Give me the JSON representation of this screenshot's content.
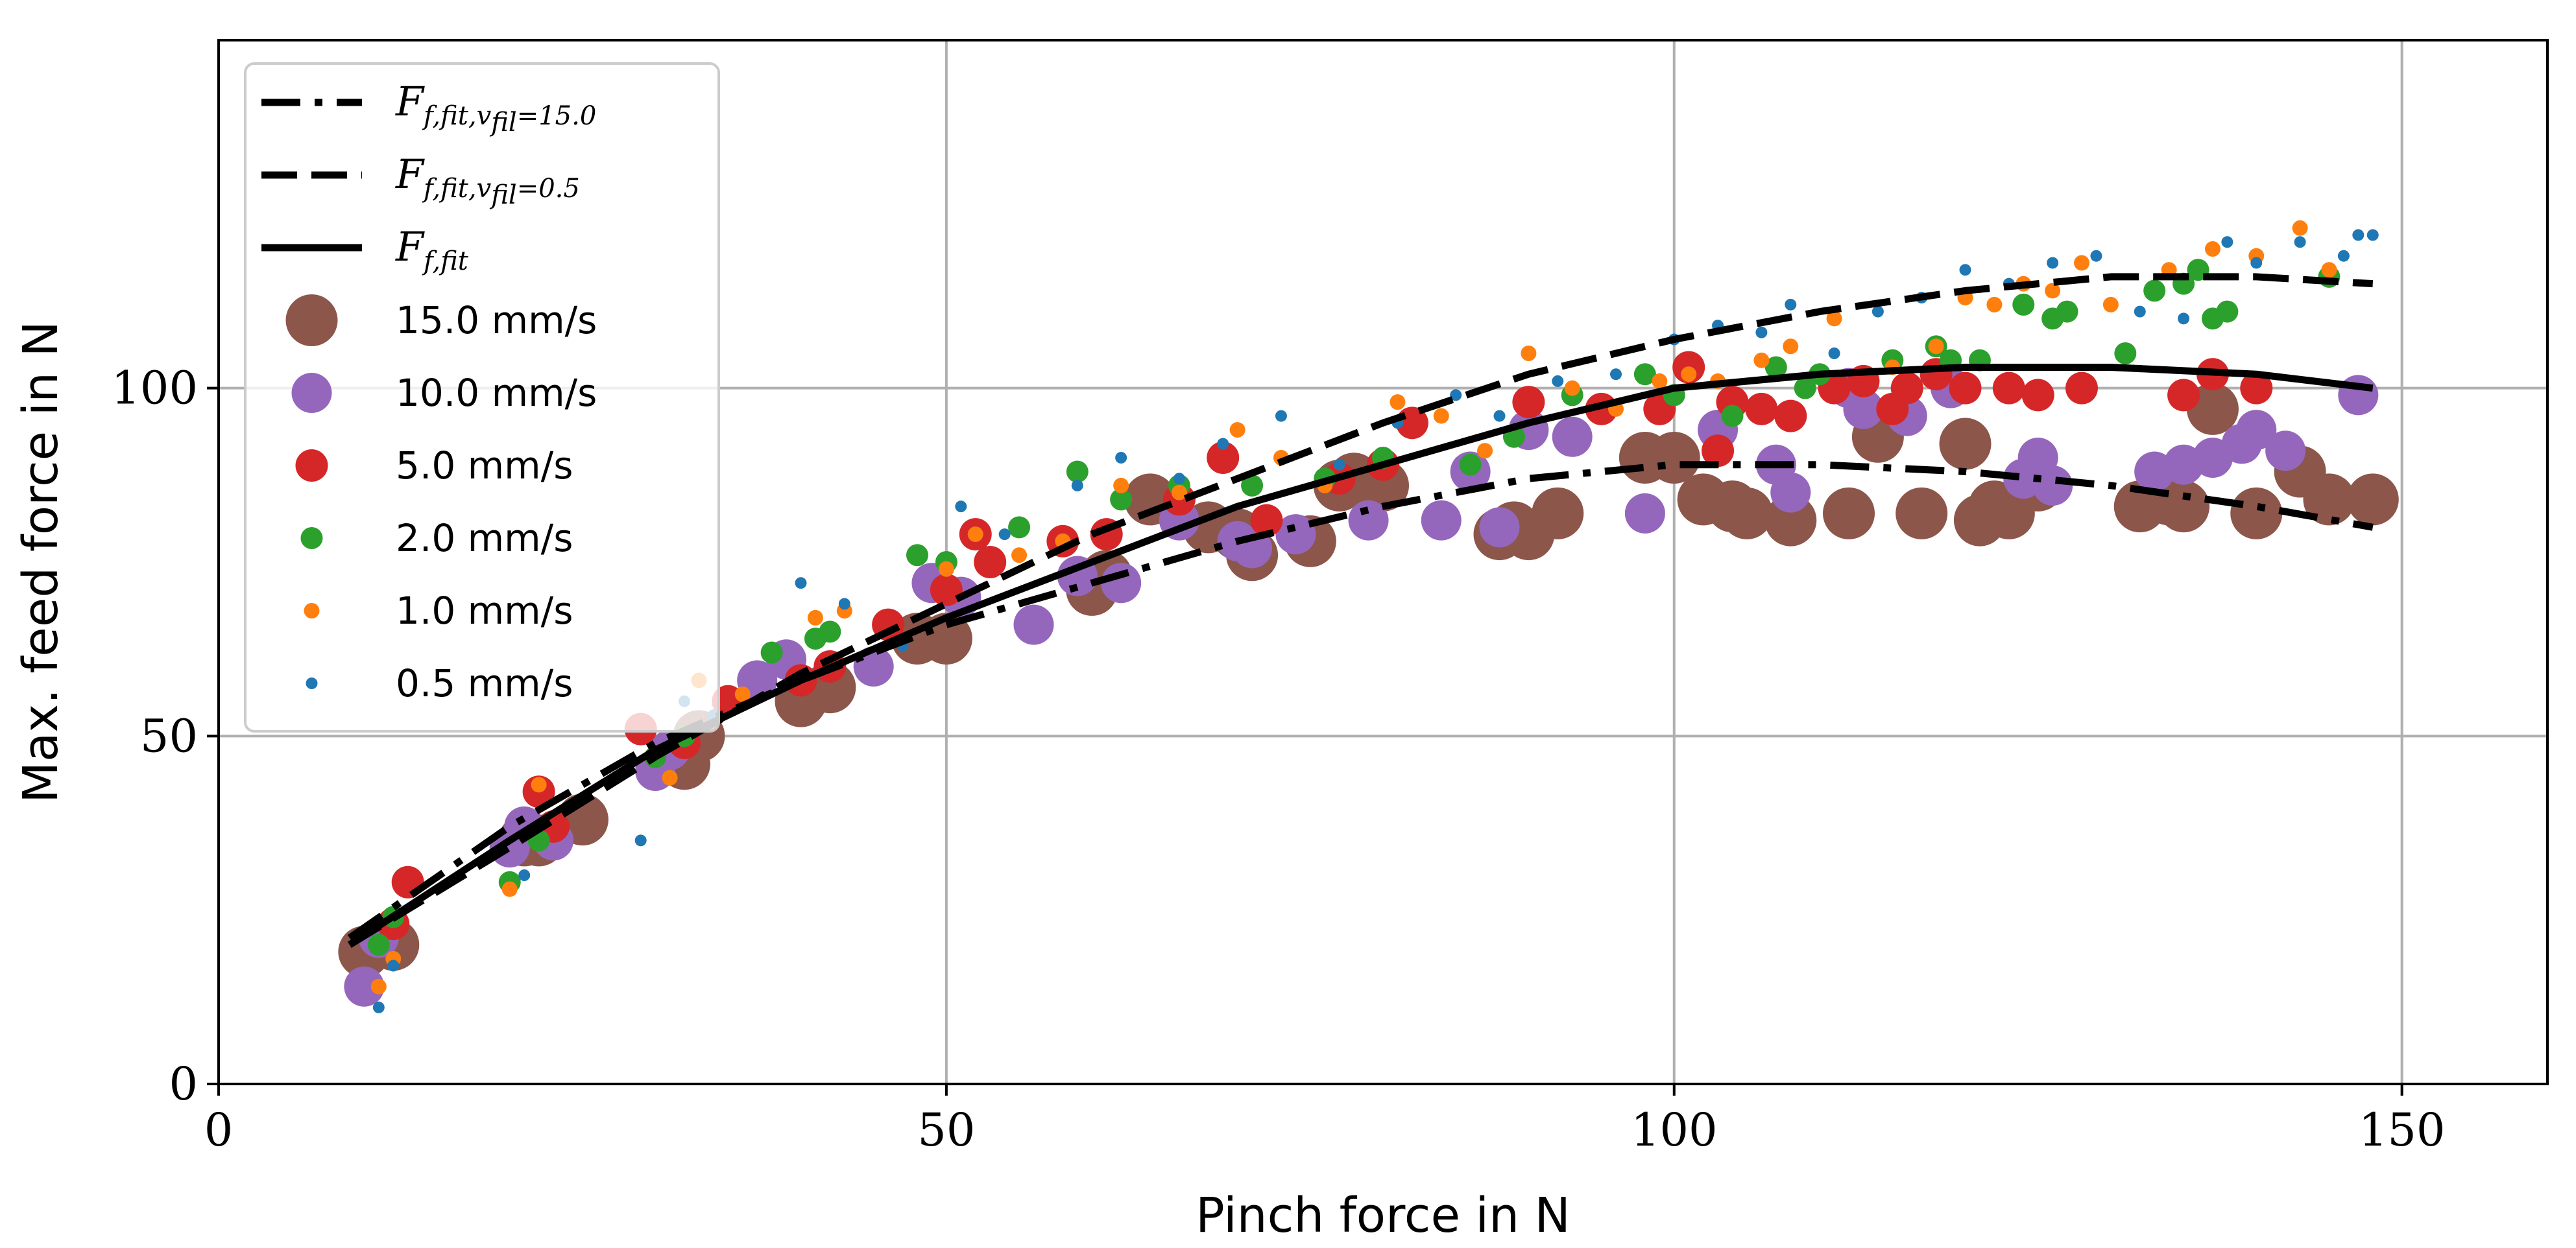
{
  "chart_data": {
    "type": "scatter",
    "title": "",
    "xlabel": "Pinch force in N",
    "ylabel": "Max. feed force in N",
    "xlim": [
      0,
      160
    ],
    "ylim": [
      0,
      150
    ],
    "xticks": [
      "0",
      "50",
      "100",
      "150"
    ],
    "xtick_values": [
      0,
      50,
      100,
      150
    ],
    "yticks": [
      "0",
      "50",
      "100"
    ],
    "ytick_values": [
      0,
      50,
      100
    ],
    "grid": true,
    "legend_position": "top-left",
    "fit_lines": [
      {
        "legend_main": "F",
        "legend_sub": "f,fit,v",
        "legend_subsub": "fil",
        "legend_tail": "=15.0",
        "style": "dashdot",
        "color": "#000000",
        "x": [
          9,
          20,
          30,
          40,
          50,
          60,
          70,
          80,
          90,
          100,
          110,
          120,
          130,
          140,
          148
        ],
        "y": [
          21,
          37,
          49,
          58,
          66,
          72,
          78,
          83,
          87,
          89,
          89,
          88,
          86,
          83,
          80
        ]
      },
      {
        "legend_main": "F",
        "legend_sub": "f,fit,v",
        "legend_subsub": "fil",
        "legend_tail": "=0.5",
        "style": "dashed",
        "color": "#000000",
        "x": [
          9,
          20,
          30,
          40,
          50,
          60,
          70,
          80,
          90,
          100,
          110,
          120,
          130,
          140,
          148
        ],
        "y": [
          20,
          34,
          47,
          59,
          69,
          79,
          87,
          95,
          102,
          107,
          111,
          114,
          116,
          116,
          115
        ]
      },
      {
        "legend_main": "F",
        "legend_sub": "f,fit",
        "legend_subsub": "",
        "legend_tail": "",
        "style": "solid",
        "color": "#000000",
        "x": [
          9,
          20,
          30,
          40,
          50,
          60,
          70,
          80,
          90,
          100,
          110,
          120,
          130,
          140,
          148
        ],
        "y": [
          20,
          35,
          48,
          58,
          67,
          75,
          83,
          89,
          95,
          100,
          102,
          103,
          103,
          102,
          100
        ]
      }
    ],
    "series": [
      {
        "name": "15.0 mm/s",
        "color": "#8c564b",
        "marker_radius": 40,
        "points": [
          [
            10,
            19
          ],
          [
            12,
            20
          ],
          [
            21,
            35
          ],
          [
            22,
            35
          ],
          [
            25,
            38
          ],
          [
            32,
            46
          ],
          [
            33,
            50
          ],
          [
            40,
            55
          ],
          [
            42,
            57
          ],
          [
            48,
            64
          ],
          [
            50,
            64
          ],
          [
            60,
            71
          ],
          [
            61,
            73
          ],
          [
            64,
            84
          ],
          [
            68,
            80
          ],
          [
            70,
            79
          ],
          [
            71,
            76
          ],
          [
            75,
            78
          ],
          [
            77,
            86
          ],
          [
            78,
            87
          ],
          [
            80,
            86
          ],
          [
            88,
            79
          ],
          [
            89,
            80
          ],
          [
            90,
            79
          ],
          [
            92,
            82
          ],
          [
            98,
            90
          ],
          [
            100,
            90
          ],
          [
            102,
            84
          ],
          [
            104,
            83
          ],
          [
            105,
            82
          ],
          [
            108,
            81
          ],
          [
            112,
            82
          ],
          [
            114,
            93
          ],
          [
            117,
            82
          ],
          [
            120,
            92
          ],
          [
            121,
            81
          ],
          [
            122,
            83
          ],
          [
            123,
            82
          ],
          [
            125,
            86
          ],
          [
            132,
            83
          ],
          [
            134,
            84
          ],
          [
            135,
            83
          ],
          [
            137,
            97
          ],
          [
            140,
            82
          ],
          [
            143,
            88
          ],
          [
            145,
            84
          ],
          [
            148,
            84
          ]
        ]
      },
      {
        "name": "10.0 mm/s",
        "color": "#9467bd",
        "marker_radius": 31,
        "points": [
          [
            10,
            14
          ],
          [
            11,
            21
          ],
          [
            20,
            34
          ],
          [
            21,
            37
          ],
          [
            23,
            35
          ],
          [
            30,
            45
          ],
          [
            31,
            48
          ],
          [
            37,
            58
          ],
          [
            39,
            61
          ],
          [
            45,
            60
          ],
          [
            49,
            72
          ],
          [
            51,
            70
          ],
          [
            56,
            66
          ],
          [
            59,
            73
          ],
          [
            62,
            72
          ],
          [
            66,
            81
          ],
          [
            70,
            78
          ],
          [
            71,
            77
          ],
          [
            74,
            79
          ],
          [
            79,
            81
          ],
          [
            84,
            81
          ],
          [
            86,
            88
          ],
          [
            88,
            80
          ],
          [
            90,
            94
          ],
          [
            93,
            93
          ],
          [
            98,
            82
          ],
          [
            103,
            94
          ],
          [
            107,
            89
          ],
          [
            108,
            85
          ],
          [
            112,
            100
          ],
          [
            113,
            97
          ],
          [
            116,
            96
          ],
          [
            119,
            100
          ],
          [
            124,
            87
          ],
          [
            125,
            90
          ],
          [
            126,
            86
          ],
          [
            133,
            88
          ],
          [
            135,
            89
          ],
          [
            137,
            90
          ],
          [
            139,
            92
          ],
          [
            140,
            94
          ],
          [
            142,
            91
          ],
          [
            147,
            99
          ]
        ]
      },
      {
        "name": "5.0 mm/s",
        "color": "#d62728",
        "marker_radius": 25,
        "points": [
          [
            13,
            29
          ],
          [
            12,
            23
          ],
          [
            22,
            42
          ],
          [
            23,
            37
          ],
          [
            29,
            51
          ],
          [
            32,
            49
          ],
          [
            35,
            55
          ],
          [
            40,
            58
          ],
          [
            42,
            60
          ],
          [
            46,
            66
          ],
          [
            50,
            71
          ],
          [
            52,
            79
          ],
          [
            53,
            75
          ],
          [
            58,
            78
          ],
          [
            61,
            79
          ],
          [
            66,
            84
          ],
          [
            69,
            90
          ],
          [
            72,
            81
          ],
          [
            77,
            87
          ],
          [
            80,
            89
          ],
          [
            82,
            95
          ],
          [
            90,
            98
          ],
          [
            95,
            97
          ],
          [
            99,
            97
          ],
          [
            101,
            103
          ],
          [
            103,
            91
          ],
          [
            104,
            98
          ],
          [
            106,
            97
          ],
          [
            108,
            96
          ],
          [
            111,
            100
          ],
          [
            113,
            101
          ],
          [
            115,
            97
          ],
          [
            116,
            100
          ],
          [
            118,
            102
          ],
          [
            120,
            100
          ],
          [
            123,
            100
          ],
          [
            125,
            99
          ],
          [
            128,
            100
          ],
          [
            135,
            99
          ],
          [
            137,
            102
          ],
          [
            140,
            100
          ]
        ]
      },
      {
        "name": "2.0 mm/s",
        "color": "#2ca02c",
        "marker_radius": 17,
        "points": [
          [
            11,
            20
          ],
          [
            12,
            24
          ],
          [
            20,
            29
          ],
          [
            22,
            35
          ],
          [
            30,
            47
          ],
          [
            32,
            50
          ],
          [
            38,
            62
          ],
          [
            41,
            64
          ],
          [
            42,
            65
          ],
          [
            48,
            76
          ],
          [
            50,
            75
          ],
          [
            55,
            80
          ],
          [
            59,
            88
          ],
          [
            62,
            84
          ],
          [
            66,
            86
          ],
          [
            71,
            86
          ],
          [
            76,
            87
          ],
          [
            80,
            90
          ],
          [
            86,
            89
          ],
          [
            89,
            93
          ],
          [
            93,
            99
          ],
          [
            98,
            102
          ],
          [
            100,
            99
          ],
          [
            104,
            96
          ],
          [
            107,
            103
          ],
          [
            109,
            100
          ],
          [
            110,
            102
          ],
          [
            115,
            104
          ],
          [
            118,
            106
          ],
          [
            119,
            104
          ],
          [
            121,
            104
          ],
          [
            124,
            112
          ],
          [
            126,
            110
          ],
          [
            127,
            111
          ],
          [
            131,
            105
          ],
          [
            133,
            114
          ],
          [
            135,
            115
          ],
          [
            136,
            117
          ],
          [
            137,
            110
          ],
          [
            138,
            111
          ],
          [
            145,
            116
          ]
        ]
      },
      {
        "name": "1.0 mm/s",
        "color": "#ff7f0e",
        "marker_radius": 12,
        "points": [
          [
            11,
            14
          ],
          [
            12,
            18
          ],
          [
            20,
            28
          ],
          [
            22,
            43
          ],
          [
            31,
            44
          ],
          [
            33,
            58
          ],
          [
            36,
            56
          ],
          [
            41,
            67
          ],
          [
            43,
            68
          ],
          [
            50,
            74
          ],
          [
            52,
            79
          ],
          [
            55,
            76
          ],
          [
            58,
            78
          ],
          [
            62,
            86
          ],
          [
            66,
            85
          ],
          [
            70,
            94
          ],
          [
            73,
            90
          ],
          [
            76,
            86
          ],
          [
            81,
            98
          ],
          [
            84,
            96
          ],
          [
            87,
            91
          ],
          [
            90,
            105
          ],
          [
            93,
            100
          ],
          [
            96,
            97
          ],
          [
            99,
            101
          ],
          [
            101,
            102
          ],
          [
            103,
            101
          ],
          [
            106,
            104
          ],
          [
            108,
            106
          ],
          [
            111,
            110
          ],
          [
            115,
            103
          ],
          [
            118,
            106
          ],
          [
            120,
            113
          ],
          [
            122,
            112
          ],
          [
            124,
            115
          ],
          [
            126,
            114
          ],
          [
            128,
            118
          ],
          [
            130,
            112
          ],
          [
            134,
            117
          ],
          [
            137,
            120
          ],
          [
            140,
            119
          ],
          [
            143,
            123
          ],
          [
            145,
            117
          ]
        ]
      },
      {
        "name": "0.5 mm/s",
        "color": "#1f77b4",
        "marker_radius": 9,
        "points": [
          [
            11,
            11
          ],
          [
            12,
            17
          ],
          [
            21,
            30
          ],
          [
            29,
            35
          ],
          [
            32,
            55
          ],
          [
            34,
            53
          ],
          [
            40,
            72
          ],
          [
            43,
            69
          ],
          [
            47,
            63
          ],
          [
            51,
            83
          ],
          [
            54,
            79
          ],
          [
            59,
            86
          ],
          [
            62,
            90
          ],
          [
            66,
            87
          ],
          [
            69,
            92
          ],
          [
            73,
            96
          ],
          [
            77,
            89
          ],
          [
            81,
            95
          ],
          [
            85,
            99
          ],
          [
            88,
            96
          ],
          [
            92,
            101
          ],
          [
            96,
            102
          ],
          [
            100,
            107
          ],
          [
            103,
            109
          ],
          [
            106,
            108
          ],
          [
            108,
            112
          ],
          [
            111,
            105
          ],
          [
            114,
            111
          ],
          [
            117,
            113
          ],
          [
            120,
            117
          ],
          [
            123,
            115
          ],
          [
            126,
            118
          ],
          [
            129,
            119
          ],
          [
            132,
            111
          ],
          [
            135,
            110
          ],
          [
            138,
            121
          ],
          [
            140,
            118
          ],
          [
            143,
            121
          ],
          [
            146,
            119
          ],
          [
            147,
            122
          ],
          [
            148,
            122
          ]
        ]
      }
    ]
  }
}
